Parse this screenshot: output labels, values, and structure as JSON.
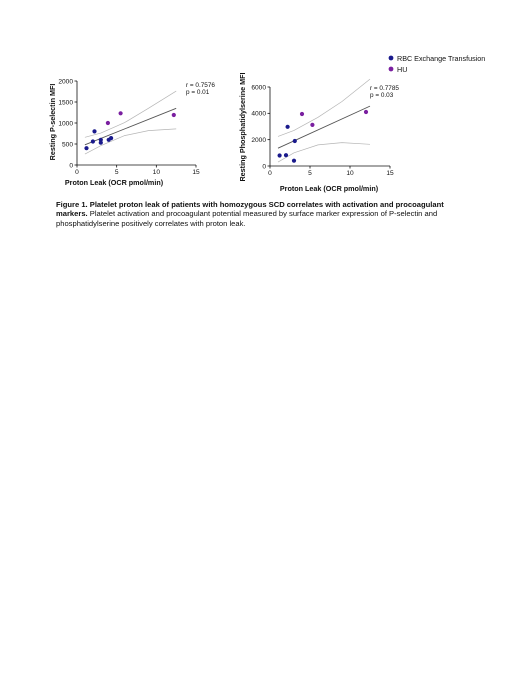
{
  "colors": {
    "rbc": "#1a1a8c",
    "hu": "#7a1fa0",
    "fit": "#555555",
    "ci": "#b5b5b5"
  },
  "legend": {
    "items": [
      {
        "label": "RBC Exchange Transfusion",
        "color": "#1a1a8c"
      },
      {
        "label": "HU",
        "color": "#7a1fa0"
      }
    ]
  },
  "chart_data": [
    {
      "type": "scatter",
      "xlabel": "Proton Leak (OCR pmol/min)",
      "ylabel": "Resting  P-selectin MFI",
      "xlim": [
        0,
        15
      ],
      "ylim": [
        0,
        2000
      ],
      "xticks": [
        "0",
        "5",
        "10",
        "15"
      ],
      "yticks": [
        "0",
        "500",
        "1000",
        "1500",
        "2000"
      ],
      "stats": {
        "r": "r = 0.7576",
        "p": "p = 0.01"
      },
      "series": [
        {
          "name": "RBC Exchange Transfusion",
          "color": "#1a1a8c",
          "points": [
            [
              1.2,
              400
            ],
            [
              2,
              560
            ],
            [
              2.2,
              800
            ],
            [
              3,
              530
            ],
            [
              3,
              600
            ],
            [
              4,
              600
            ],
            [
              4.3,
              640
            ]
          ]
        },
        {
          "name": "HU",
          "color": "#7a1fa0",
          "points": [
            [
              3.9,
              1000
            ],
            [
              5.5,
              1230
            ],
            [
              12.2,
              1190
            ]
          ]
        }
      ],
      "fit": {
        "x": [
          1,
          12.5
        ],
        "y": [
          480,
          1350
        ]
      },
      "ci_upper": {
        "x": [
          1,
          3,
          6,
          9,
          12.5
        ],
        "y": [
          660,
          760,
          1010,
          1350,
          1760
        ]
      },
      "ci_lower": {
        "x": [
          1,
          3,
          6,
          9,
          12.5
        ],
        "y": [
          260,
          460,
          700,
          820,
          860
        ]
      }
    },
    {
      "type": "scatter",
      "xlabel": "Proton Leak (OCR pmol/min)",
      "ylabel": "Resting Phosphatidylserine MFI",
      "xlim": [
        0,
        15
      ],
      "ylim": [
        0,
        6000
      ],
      "xticks": [
        "0",
        "5",
        "10",
        "15"
      ],
      "yticks": [
        "0",
        "2000",
        "4000",
        "6000"
      ],
      "stats": {
        "r": "r = 0.7785",
        "p": "p = 0.03"
      },
      "series": [
        {
          "name": "RBC Exchange Transfusion",
          "color": "#1a1a8c",
          "points": [
            [
              1.2,
              800
            ],
            [
              2,
              820
            ],
            [
              2.2,
              2980
            ],
            [
              3,
              400
            ],
            [
              3.1,
              1900
            ]
          ]
        },
        {
          "name": "HU",
          "color": "#7a1fa0",
          "points": [
            [
              4,
              3950
            ],
            [
              5.3,
              3120
            ],
            [
              12,
              4100
            ]
          ]
        }
      ],
      "fit": {
        "x": [
          1,
          12.5
        ],
        "y": [
          1350,
          4550
        ]
      },
      "ci_upper": {
        "x": [
          1,
          3,
          6,
          9,
          12.5
        ],
        "y": [
          2250,
          2700,
          3700,
          4900,
          6600
        ]
      },
      "ci_lower": {
        "x": [
          1,
          3,
          6,
          9,
          12.5
        ],
        "y": [
          300,
          1000,
          1600,
          1780,
          1650
        ]
      }
    }
  ],
  "caption": {
    "bold": "Figure 1. Platelet proton leak of patients with homozygous SCD correlates with activation and procoagulant markers.",
    "text": " Platelet activation and procoagulant potential measured by surface marker expression of P-selectin and phosphatidylserine positively correlates with proton leak."
  }
}
